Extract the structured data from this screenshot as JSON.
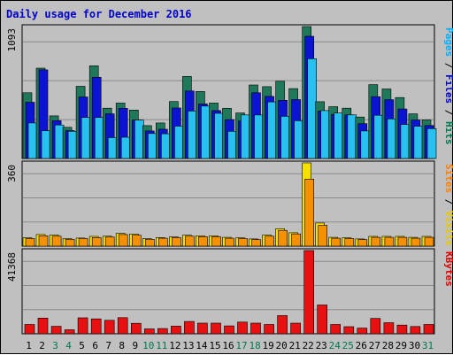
{
  "chart_data": {
    "type": "bar",
    "title": "Daily usage for December 2016",
    "categories": [
      "1",
      "2",
      "3",
      "4",
      "5",
      "6",
      "7",
      "8",
      "9",
      "10",
      "11",
      "12",
      "13",
      "14",
      "15",
      "16",
      "17",
      "18",
      "19",
      "20",
      "21",
      "22",
      "23",
      "24",
      "25",
      "26",
      "27",
      "28",
      "29",
      "30",
      "31"
    ],
    "weekend_days": [
      "3",
      "4",
      "10",
      "11",
      "17",
      "18",
      "24",
      "25",
      "31"
    ],
    "panels": [
      {
        "id": "hits",
        "y_max_label": "1093",
        "ylim": [
          0,
          1093
        ],
        "right_label_parts": [
          {
            "text": "Pages",
            "color": "#00b0ff"
          },
          {
            "text": " / ",
            "color": "#000000"
          },
          {
            "text": "Files",
            "color": "#0000c8"
          },
          {
            "text": " / ",
            "color": "#000000"
          },
          {
            "text": "Hits",
            "color": "#007850"
          }
        ],
        "series": [
          {
            "name": "Hits",
            "color": "#20785a",
            "values": [
              544,
              748,
              353,
              258,
              598,
              768,
              417,
              459,
              401,
              272,
              294,
              472,
              680,
              555,
              459,
              416,
              377,
              609,
              595,
              640,
              579,
              1093,
              470,
              429,
              417,
              343,
              612,
              576,
              505,
              370,
              320
            ]
          },
          {
            "name": "Files",
            "color": "#0a14d2",
            "values": [
              466,
              734,
              313,
              231,
              510,
              673,
              370,
              416,
              318,
              228,
              242,
              418,
              559,
              452,
              397,
              322,
              311,
              544,
              514,
              482,
              488,
              1012,
              394,
              365,
              362,
              288,
              512,
              487,
              410,
              318,
              273
            ]
          },
          {
            "name": "Pages",
            "color": "#28c0f0",
            "values": [
              294,
              230,
              277,
              225,
              340,
              340,
              173,
              176,
              318,
              207,
              205,
              268,
              393,
              434,
              374,
              225,
              361,
              360,
              469,
              349,
              313,
              827,
              397,
              376,
              361,
              228,
              358,
              328,
              282,
              267,
              247
            ]
          }
        ]
      },
      {
        "id": "visits",
        "y_max_label": "360",
        "ylim": [
          0,
          360
        ],
        "right_label_parts": [
          {
            "text": "Sites",
            "color": "#ff8000"
          },
          {
            "text": " / ",
            "color": "#000000"
          },
          {
            "text": "Visits",
            "color": "#e8c800"
          }
        ],
        "series": [
          {
            "name": "Visits",
            "color": "#f5e000",
            "values": [
              36,
              50,
              48,
              32,
              35,
              42,
              43,
              55,
              52,
              32,
              37,
              40,
              47,
              45,
              45,
              38,
              36,
              31,
              48,
              75,
              58,
              360,
              100,
              38,
              36,
              31,
              42,
              42,
              42,
              38,
              42
            ]
          },
          {
            "name": "Sites",
            "color": "#f59000",
            "values": [
              33,
              45,
              43,
              29,
              33,
              37,
              39,
              50,
              47,
              29,
              34,
              37,
              43,
              41,
              41,
              34,
              33,
              28,
              43,
              68,
              53,
              290,
              90,
              34,
              33,
              28,
              38,
              38,
              38,
              34,
              38
            ]
          }
        ]
      },
      {
        "id": "kbytes",
        "y_max_label": "41368",
        "ylim": [
          0,
          41368
        ],
        "right_label_parts": [
          {
            "text": "KBytes",
            "color": "#e00000"
          }
        ],
        "series": [
          {
            "name": "KBytes",
            "color": "#e81010",
            "values": [
              4600,
              7800,
              3700,
              2000,
              7900,
              7400,
              6700,
              8000,
              5200,
              2400,
              2600,
              3800,
              6100,
              5300,
              5300,
              3900,
              5800,
              5300,
              4600,
              9000,
              5300,
              41368,
              14300,
              4600,
              3500,
              2800,
              7600,
              5500,
              4300,
              3600,
              4600
            ]
          }
        ]
      }
    ],
    "colors": {
      "title": "#0000c8",
      "weekday_label": "#000000",
      "weekend_label": "#007850",
      "axis_label": "#000000"
    }
  }
}
